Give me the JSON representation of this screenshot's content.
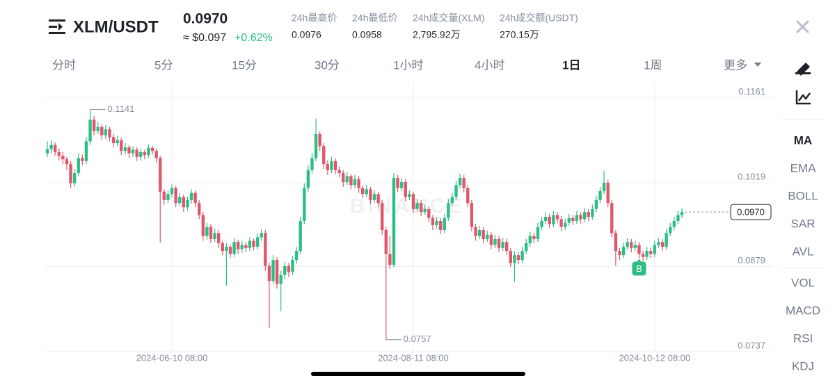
{
  "header": {
    "symbol": "XLM/USDT",
    "price": "0.0970",
    "approx": "≈ $0.097",
    "change": "+0.62%",
    "stats": [
      {
        "label": "24h最高价",
        "value": "0.0976"
      },
      {
        "label": "24h最低价",
        "value": "0.0958"
      },
      {
        "label": "24h成交量(XLM)",
        "value": "2,795.92万"
      },
      {
        "label": "24h成交额(USDT)",
        "value": "270.15万"
      }
    ]
  },
  "tabs": [
    "分时",
    "5分",
    "15分",
    "30分",
    "1小时",
    "4小时",
    "1日",
    "1周",
    "更多"
  ],
  "active_tab": 6,
  "indicators": [
    "MA",
    "EMA",
    "BOLL",
    "SAR",
    "AVL",
    "VOL",
    "MACD",
    "RSI",
    "KDJ"
  ],
  "chart_data": {
    "type": "candlestick",
    "watermark": "BINANCE",
    "up_color": "#2ebd85",
    "down_color": "#e0566a",
    "ylim": [
      0.0737,
      0.1187
    ],
    "yticks": [
      0.1161,
      0.1019,
      0.0879,
      0.0737
    ],
    "grid": true,
    "xlim": [
      0,
      163
    ],
    "xticks": [
      {
        "value": 32,
        "label": "2024-06-10 08:00"
      },
      {
        "value": 94,
        "label": "2024-08-11 08:00"
      },
      {
        "value": 156,
        "label": "2024-10-12 08:00"
      }
    ],
    "annotations": [
      {
        "text": 0.1141,
        "x": 11,
        "at": "high"
      },
      {
        "text": 0.0757,
        "x": 87,
        "at": "low"
      }
    ],
    "marker": {
      "text": "B",
      "x": 152
    },
    "price_tag": {
      "value": 0.097,
      "label": "0.0970"
    },
    "candles": [
      [
        0.1068,
        0.1088,
        0.1062,
        0.1075
      ],
      [
        0.1075,
        0.109,
        0.1068,
        0.1082
      ],
      [
        0.1082,
        0.1086,
        0.1064,
        0.107
      ],
      [
        0.107,
        0.1076,
        0.1056,
        0.1064
      ],
      [
        0.1064,
        0.107,
        0.105,
        0.1058
      ],
      [
        0.1058,
        0.1062,
        0.104,
        0.105
      ],
      [
        0.105,
        0.1055,
        0.101,
        0.1018
      ],
      [
        0.1018,
        0.1042,
        0.1012,
        0.1035
      ],
      [
        0.1035,
        0.1068,
        0.103,
        0.106
      ],
      [
        0.106,
        0.1066,
        0.1048,
        0.1055
      ],
      [
        0.1055,
        0.1095,
        0.105,
        0.1088
      ],
      [
        0.1088,
        0.1141,
        0.1082,
        0.1124
      ],
      [
        0.1124,
        0.113,
        0.1098,
        0.1105
      ],
      [
        0.1105,
        0.112,
        0.11,
        0.1112
      ],
      [
        0.1112,
        0.1116,
        0.109,
        0.1098
      ],
      [
        0.1098,
        0.1115,
        0.1092,
        0.1108
      ],
      [
        0.1108,
        0.1112,
        0.1088,
        0.1095
      ],
      [
        0.1095,
        0.11,
        0.1078,
        0.1085
      ],
      [
        0.1085,
        0.1097,
        0.108,
        0.109
      ],
      [
        0.109,
        0.1094,
        0.1065,
        0.1072
      ],
      [
        0.1072,
        0.1085,
        0.1066,
        0.1078
      ],
      [
        0.1078,
        0.1082,
        0.106,
        0.1068
      ],
      [
        0.1068,
        0.108,
        0.1062,
        0.1074
      ],
      [
        0.1074,
        0.1078,
        0.1055,
        0.1062
      ],
      [
        0.1062,
        0.1076,
        0.1056,
        0.107
      ],
      [
        0.107,
        0.1074,
        0.1058,
        0.1065
      ],
      [
        0.1065,
        0.1083,
        0.106,
        0.1077
      ],
      [
        0.1077,
        0.108,
        0.1066,
        0.1072
      ],
      [
        0.1072,
        0.1076,
        0.1052,
        0.106
      ],
      [
        0.106,
        0.1064,
        0.0919,
        0.1004
      ],
      [
        0.1004,
        0.1008,
        0.0982,
        0.099
      ],
      [
        0.099,
        0.1006,
        0.0985,
        0.1
      ],
      [
        0.1,
        0.1016,
        0.0994,
        0.101
      ],
      [
        0.101,
        0.1014,
        0.0978,
        0.0985
      ],
      [
        0.0985,
        0.1002,
        0.098,
        0.0995
      ],
      [
        0.0995,
        0.0999,
        0.097,
        0.0978
      ],
      [
        0.0978,
        0.0996,
        0.0972,
        0.099
      ],
      [
        0.099,
        0.1008,
        0.0984,
        0.1002
      ],
      [
        0.1002,
        0.1006,
        0.0978,
        0.0985
      ],
      [
        0.0985,
        0.099,
        0.0958,
        0.0965
      ],
      [
        0.0965,
        0.097,
        0.0922,
        0.093
      ],
      [
        0.093,
        0.0952,
        0.0924,
        0.0945
      ],
      [
        0.0945,
        0.095,
        0.0918,
        0.0925
      ],
      [
        0.0925,
        0.0942,
        0.092,
        0.0935
      ],
      [
        0.0935,
        0.094,
        0.091,
        0.0918
      ],
      [
        0.0918,
        0.0922,
        0.0898,
        0.0905
      ],
      [
        0.0905,
        0.0918,
        0.0847,
        0.0912
      ],
      [
        0.0912,
        0.0916,
        0.0893,
        0.09
      ],
      [
        0.09,
        0.0927,
        0.0895,
        0.092
      ],
      [
        0.092,
        0.0924,
        0.09,
        0.0908
      ],
      [
        0.0908,
        0.0922,
        0.0902,
        0.0915
      ],
      [
        0.0915,
        0.092,
        0.0903,
        0.091
      ],
      [
        0.091,
        0.0928,
        0.0905,
        0.0922
      ],
      [
        0.0922,
        0.0926,
        0.0906,
        0.0912
      ],
      [
        0.0912,
        0.0934,
        0.0908,
        0.0928
      ],
      [
        0.0928,
        0.0942,
        0.0922,
        0.0935
      ],
      [
        0.0935,
        0.094,
        0.0872,
        0.088
      ],
      [
        0.088,
        0.0886,
        0.0777,
        0.0855
      ],
      [
        0.0855,
        0.0898,
        0.085,
        0.089
      ],
      [
        0.089,
        0.0895,
        0.0842,
        0.085
      ],
      [
        0.085,
        0.0872,
        0.0804,
        0.0865
      ],
      [
        0.0865,
        0.0887,
        0.0858,
        0.088
      ],
      [
        0.088,
        0.0885,
        0.0862,
        0.087
      ],
      [
        0.087,
        0.0897,
        0.0865,
        0.089
      ],
      [
        0.089,
        0.0912,
        0.0884,
        0.0905
      ],
      [
        0.0905,
        0.0962,
        0.09,
        0.0955
      ],
      [
        0.0955,
        0.1018,
        0.095,
        0.101
      ],
      [
        0.101,
        0.1048,
        0.1004,
        0.104
      ],
      [
        0.104,
        0.1068,
        0.1034,
        0.106
      ],
      [
        0.106,
        0.1126,
        0.1055,
        0.11
      ],
      [
        0.11,
        0.1105,
        0.1072,
        0.108
      ],
      [
        0.108,
        0.1085,
        0.1042,
        0.105
      ],
      [
        0.105,
        0.1056,
        0.1032,
        0.104
      ],
      [
        0.104,
        0.1062,
        0.1035,
        0.1055
      ],
      [
        0.1055,
        0.106,
        0.1033,
        0.104
      ],
      [
        0.104,
        0.1046,
        0.1028,
        0.1035
      ],
      [
        0.1035,
        0.104,
        0.1012,
        0.102
      ],
      [
        0.102,
        0.1037,
        0.1015,
        0.103
      ],
      [
        0.103,
        0.1034,
        0.1008,
        0.1015
      ],
      [
        0.1015,
        0.1032,
        0.101,
        0.1025
      ],
      [
        0.1025,
        0.103,
        0.1002,
        0.101
      ],
      [
        0.101,
        0.1015,
        0.0993,
        0.1
      ],
      [
        0.1,
        0.1015,
        0.0995,
        0.1008
      ],
      [
        0.1008,
        0.1012,
        0.0983,
        0.099
      ],
      [
        0.099,
        0.1006,
        0.0985,
        0.1
      ],
      [
        0.1,
        0.1004,
        0.0978,
        0.0985
      ],
      [
        0.0985,
        0.099,
        0.0932,
        0.094
      ],
      [
        0.094,
        0.0945,
        0.0757,
        0.09
      ],
      [
        0.09,
        0.093,
        0.0875,
        0.0882
      ],
      [
        0.0882,
        0.1035,
        0.0878,
        0.1027
      ],
      [
        0.1027,
        0.1032,
        0.1003,
        0.101
      ],
      [
        0.101,
        0.1027,
        0.1005,
        0.102
      ],
      [
        0.102,
        0.1025,
        0.0988,
        0.0995
      ],
      [
        0.0995,
        0.1006,
        0.099,
        0.1
      ],
      [
        0.1,
        0.1004,
        0.0968,
        0.0975
      ],
      [
        0.0975,
        0.0992,
        0.097,
        0.0985
      ],
      [
        0.0985,
        0.099,
        0.0963,
        0.097
      ],
      [
        0.097,
        0.0982,
        0.0965,
        0.0975
      ],
      [
        0.0975,
        0.098,
        0.0953,
        0.096
      ],
      [
        0.096,
        0.0965,
        0.094,
        0.0948
      ],
      [
        0.0948,
        0.0962,
        0.0942,
        0.0955
      ],
      [
        0.0955,
        0.096,
        0.0933,
        0.094
      ],
      [
        0.094,
        0.0967,
        0.0935,
        0.096
      ],
      [
        0.096,
        0.0992,
        0.0955,
        0.0985
      ],
      [
        0.0985,
        0.1002,
        0.098,
        0.0995
      ],
      [
        0.0995,
        0.1022,
        0.099,
        0.1015
      ],
      [
        0.1015,
        0.1034,
        0.101,
        0.1027
      ],
      [
        0.1027,
        0.1032,
        0.1003,
        0.101
      ],
      [
        0.101,
        0.1015,
        0.0978,
        0.0985
      ],
      [
        0.0985,
        0.099,
        0.0938,
        0.0945
      ],
      [
        0.0945,
        0.095,
        0.0922,
        0.093
      ],
      [
        0.093,
        0.0947,
        0.0925,
        0.094
      ],
      [
        0.094,
        0.0945,
        0.0918,
        0.0925
      ],
      [
        0.0925,
        0.0939,
        0.092,
        0.0932
      ],
      [
        0.0932,
        0.0937,
        0.0908,
        0.0915
      ],
      [
        0.0915,
        0.0932,
        0.091,
        0.0925
      ],
      [
        0.0925,
        0.093,
        0.0903,
        0.091
      ],
      [
        0.091,
        0.0927,
        0.0905,
        0.092
      ],
      [
        0.092,
        0.0925,
        0.0898,
        0.0905
      ],
      [
        0.0905,
        0.091,
        0.0878,
        0.0885
      ],
      [
        0.0885,
        0.0905,
        0.0853,
        0.0898
      ],
      [
        0.0898,
        0.0903,
        0.0883,
        0.089
      ],
      [
        0.089,
        0.0912,
        0.0885,
        0.0905
      ],
      [
        0.0905,
        0.0925,
        0.09,
        0.0918
      ],
      [
        0.0918,
        0.0937,
        0.0912,
        0.093
      ],
      [
        0.093,
        0.0935,
        0.0918,
        0.0925
      ],
      [
        0.0925,
        0.0952,
        0.092,
        0.0945
      ],
      [
        0.0945,
        0.0962,
        0.094,
        0.0955
      ],
      [
        0.0955,
        0.097,
        0.095,
        0.0962
      ],
      [
        0.0962,
        0.0967,
        0.0943,
        0.095
      ],
      [
        0.095,
        0.0972,
        0.0945,
        0.0965
      ],
      [
        0.0965,
        0.097,
        0.0951,
        0.0958
      ],
      [
        0.0958,
        0.0963,
        0.0938,
        0.0945
      ],
      [
        0.0945,
        0.0959,
        0.094,
        0.0952
      ],
      [
        0.0952,
        0.0967,
        0.0947,
        0.096
      ],
      [
        0.096,
        0.0965,
        0.0948,
        0.0955
      ],
      [
        0.0955,
        0.0972,
        0.095,
        0.0965
      ],
      [
        0.0965,
        0.097,
        0.0951,
        0.0958
      ],
      [
        0.0958,
        0.0977,
        0.0953,
        0.097
      ],
      [
        0.097,
        0.0975,
        0.0955,
        0.0962
      ],
      [
        0.0962,
        0.0982,
        0.0957,
        0.0975
      ],
      [
        0.0975,
        0.0997,
        0.097,
        0.099
      ],
      [
        0.099,
        0.1012,
        0.0985,
        0.1005
      ],
      [
        0.1005,
        0.1039,
        0.1,
        0.1019
      ],
      [
        0.1019,
        0.1024,
        0.0978,
        0.0985
      ],
      [
        0.0985,
        0.099,
        0.0928,
        0.0935
      ],
      [
        0.0935,
        0.094,
        0.088,
        0.0905
      ],
      [
        0.0905,
        0.091,
        0.089,
        0.0898
      ],
      [
        0.0898,
        0.0919,
        0.0893,
        0.0912
      ],
      [
        0.0912,
        0.0927,
        0.0907,
        0.092
      ],
      [
        0.092,
        0.0925,
        0.0903,
        0.091
      ],
      [
        0.091,
        0.0922,
        0.0905,
        0.0915
      ],
      [
        0.0915,
        0.092,
        0.0893,
        0.09
      ],
      [
        0.09,
        0.0905,
        0.0888,
        0.0895
      ],
      [
        0.0895,
        0.0912,
        0.089,
        0.0905
      ],
      [
        0.0905,
        0.091,
        0.0893,
        0.09
      ],
      [
        0.09,
        0.0922,
        0.0895,
        0.0915
      ],
      [
        0.0915,
        0.0927,
        0.091,
        0.092
      ],
      [
        0.092,
        0.0925,
        0.0905,
        0.0912
      ],
      [
        0.0912,
        0.0942,
        0.0907,
        0.0935
      ],
      [
        0.0935,
        0.0952,
        0.093,
        0.0945
      ],
      [
        0.0945,
        0.0962,
        0.094,
        0.0955
      ],
      [
        0.0955,
        0.0972,
        0.095,
        0.0965
      ],
      [
        0.0965,
        0.0976,
        0.096,
        0.097
      ]
    ]
  }
}
